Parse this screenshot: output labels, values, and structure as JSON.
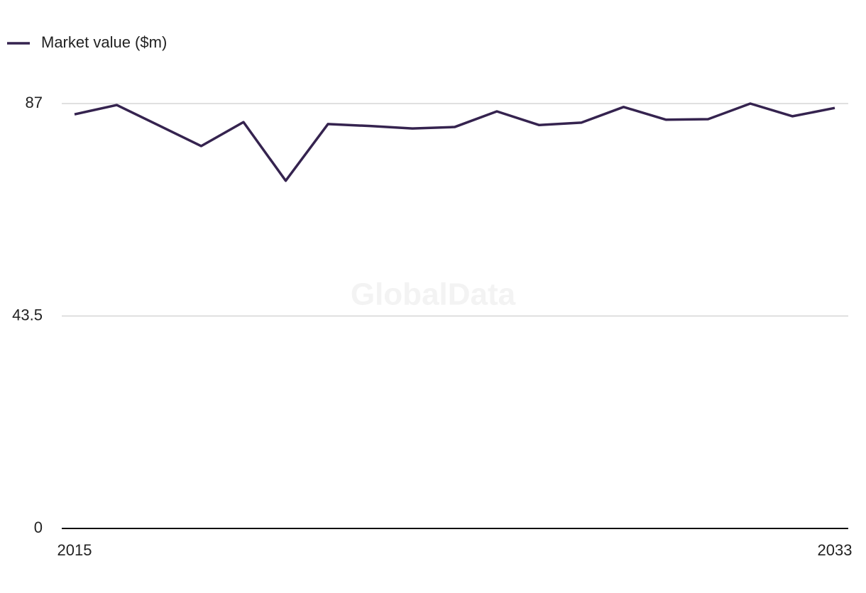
{
  "chart_data": {
    "type": "line",
    "watermark": "GlobalData",
    "x": [
      2015,
      2016,
      2017,
      2018,
      2019,
      2020,
      2021,
      2022,
      2023,
      2024,
      2025,
      2026,
      2027,
      2028,
      2029,
      2030,
      2031,
      2032,
      2033
    ],
    "series": [
      {
        "name": "Market value ($m)",
        "color": "#35234f",
        "values": [
          84.8,
          86.7,
          82.5,
          78.3,
          83.2,
          71.2,
          82.8,
          82.4,
          81.9,
          82.2,
          85.4,
          82.6,
          83.1,
          86.3,
          83.7,
          83.8,
          87.0,
          84.4,
          86.1
        ]
      }
    ],
    "xlim": [
      2015,
      2033
    ],
    "xticks": [
      2015,
      2033
    ],
    "ylim": [
      0,
      87
    ],
    "yticks": [
      0,
      43.5,
      87
    ],
    "grid": true,
    "legend": "top-left"
  }
}
